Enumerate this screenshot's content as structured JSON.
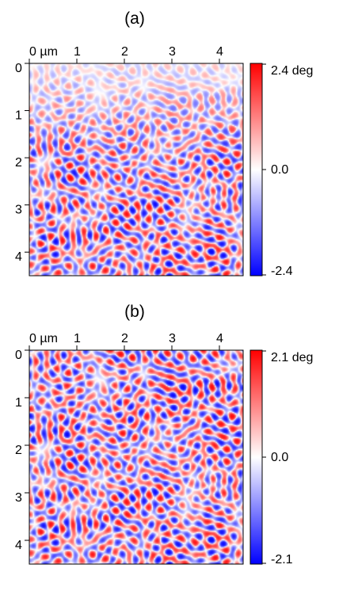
{
  "chart_data": [
    {
      "type": "heatmap",
      "title": "(a)",
      "x_ticks": [
        "0 µm",
        "1",
        "2",
        "3",
        "4"
      ],
      "x_tick_values": [
        0,
        1,
        2,
        3,
        4
      ],
      "y_ticks": [
        "0",
        "1",
        "2",
        "3",
        "4"
      ],
      "y_tick_values": [
        0,
        1,
        2,
        3,
        4
      ],
      "xlim": [
        0,
        4.5
      ],
      "ylim": [
        0,
        4.5
      ],
      "colorbar": {
        "max_label": "2.4 deg",
        "mid_label": "0.0",
        "min_label": "-2.4",
        "max": 2.4,
        "min": -2.4
      },
      "colormap": {
        "high": "#ff0000",
        "mid": "#ffffff",
        "low": "#0000ff"
      }
    },
    {
      "type": "heatmap",
      "title": "(b)",
      "x_ticks": [
        "0 µm",
        "1",
        "2",
        "3",
        "4"
      ],
      "x_tick_values": [
        0,
        1,
        2,
        3,
        4
      ],
      "y_ticks": [
        "0",
        "1",
        "2",
        "3",
        "4"
      ],
      "y_tick_values": [
        0,
        1,
        2,
        3,
        4
      ],
      "xlim": [
        0,
        4.5
      ],
      "ylim": [
        0,
        4.5
      ],
      "colorbar": {
        "max_label": "2.1 deg",
        "mid_label": "0.0",
        "min_label": "-2.1",
        "max": 2.1,
        "min": -2.1
      },
      "colormap": {
        "high": "#ff0000",
        "mid": "#ffffff",
        "low": "#0000ff"
      }
    }
  ]
}
